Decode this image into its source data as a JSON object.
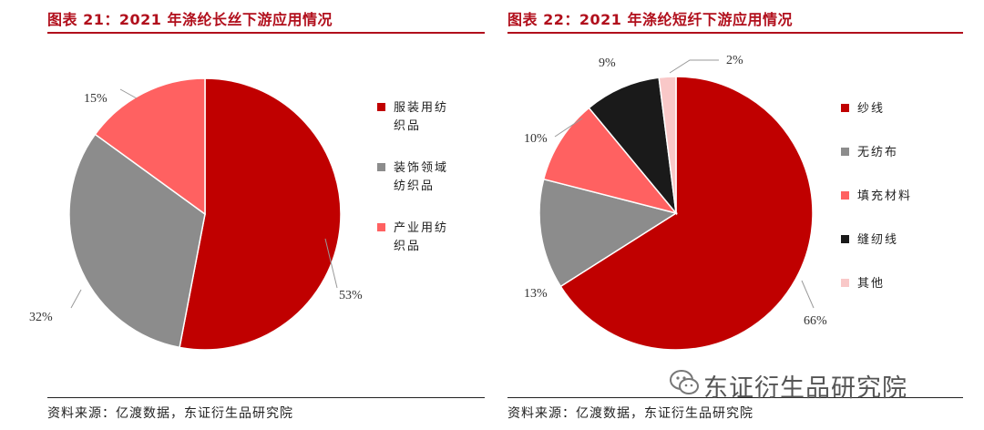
{
  "watermark": "东证衍生品研究院",
  "chart_data": [
    {
      "type": "pie",
      "title": "图表 21：2021 年涤纶长丝下游应用情况",
      "source": "资料来源：亿渡数据，东证衍生品研究院",
      "legend_position": "right",
      "slices": [
        {
          "name": "服装用纺织品",
          "legend_lines": [
            "服装用纺",
            "织品"
          ],
          "value": 53,
          "label": "53%",
          "color": "#c00000"
        },
        {
          "name": "装饰领域纺织品",
          "legend_lines": [
            "装饰领域",
            "纺织品"
          ],
          "value": 32,
          "label": "32%",
          "color": "#8c8c8c"
        },
        {
          "name": "产业用纺织品",
          "legend_lines": [
            "产业用纺",
            "织品"
          ],
          "value": 15,
          "label": "15%",
          "color": "#ff6161"
        }
      ]
    },
    {
      "type": "pie",
      "title": "图表 22：2021 年涤纶短纤下游应用情况",
      "source": "资料来源：亿渡数据，东证衍生品研究院",
      "legend_position": "right",
      "slices": [
        {
          "name": "纱线",
          "legend_lines": [
            "纱线"
          ],
          "value": 66,
          "label": "66%",
          "color": "#c00000"
        },
        {
          "name": "无纺布",
          "legend_lines": [
            "无纺布"
          ],
          "value": 13,
          "label": "13%",
          "color": "#8c8c8c"
        },
        {
          "name": "填充材料",
          "legend_lines": [
            "填充材料"
          ],
          "value": 10,
          "label": "10%",
          "color": "#ff6161"
        },
        {
          "name": "缝纫线",
          "legend_lines": [
            "缝纫线"
          ],
          "value": 9,
          "label": "9%",
          "color": "#1a1a1a"
        },
        {
          "name": "其他",
          "legend_lines": [
            "其他"
          ],
          "value": 2,
          "label": "2%",
          "color": "#f9c8c8"
        }
      ]
    }
  ]
}
